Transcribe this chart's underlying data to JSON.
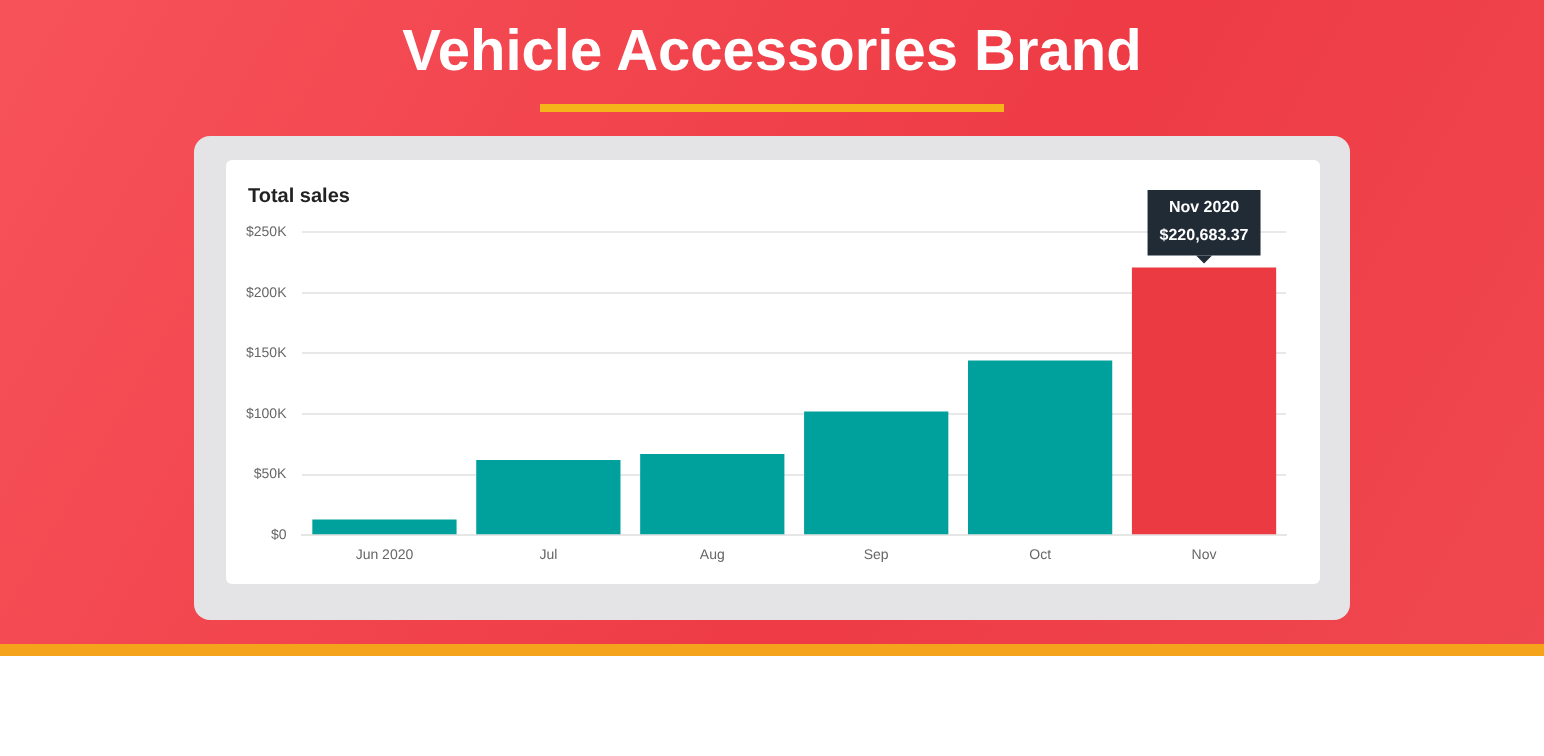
{
  "chart_data": {
    "type": "bar",
    "title": "Vehicle Accessories Brand",
    "subtitle": "Total sales",
    "categories": [
      "Jun 2020",
      "Jul",
      "Aug",
      "Sep",
      "Oct",
      "Nov"
    ],
    "values": [
      13000,
      62000,
      67000,
      102000,
      144000,
      220683.37
    ],
    "colors": [
      "#00a19c",
      "#00a19c",
      "#00a19c",
      "#00a19c",
      "#00a19c",
      "#ec3a42"
    ],
    "value_labels": [
      null,
      null,
      null,
      null,
      null,
      "$220,683.37"
    ],
    "annotations": [
      "Nov 2020"
    ],
    "ylim": [
      0,
      250000
    ],
    "yticks": [
      {
        "value": 0,
        "label": "$0"
      },
      {
        "value": 50000,
        "label": "$50K"
      },
      {
        "value": 100000,
        "label": "$100K"
      },
      {
        "value": 150000,
        "label": "$150K"
      },
      {
        "value": 200000,
        "label": "$200K"
      },
      {
        "value": 250000,
        "label": "$250K"
      }
    ],
    "grid": "y",
    "legend": false
  }
}
